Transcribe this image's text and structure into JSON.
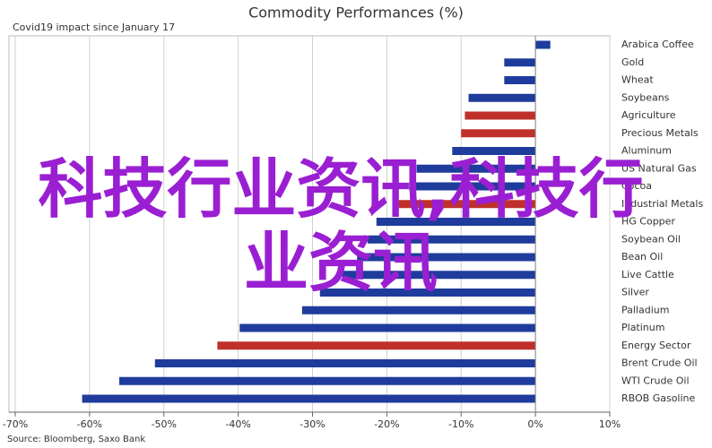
{
  "chart_data": {
    "type": "hbar",
    "title": "Commodity Performances (%)",
    "subtitle": "Covid19 impact since January 17",
    "source": "Source: Bloomberg, Saxo Bank",
    "watermark": "科技行业资讯,科技行业资讯",
    "categories": [
      "Arabica Coffee",
      "Gold",
      "Wheat",
      "Soybeans",
      "Agriculture",
      "Precious Metals",
      "Aluminum",
      "US Natural Gas",
      "Cocoa",
      "Industrial Metals",
      "HG Copper",
      "Soybean Oil",
      "Bean Oil",
      "Live Cattle",
      "Silver",
      "Palladium",
      "Platinum",
      "Energy Sector",
      "Brent Crude Oil",
      "WTI Crude Oil",
      "RBOB Gasoline"
    ],
    "values": [
      2,
      -4.2,
      -4.2,
      -9,
      -9.5,
      -10,
      -11.2,
      -16,
      -17,
      -18.4,
      -21.4,
      -22.6,
      -24,
      -26,
      -29,
      -31.4,
      -39.8,
      -42.8,
      -51.2,
      -56,
      -61
    ],
    "colors": [
      "#1f3c9c",
      "#1f3c9c",
      "#1f3c9c",
      "#1f3c9c",
      "#c0302a",
      "#c0302a",
      "#1f3c9c",
      "#1f3c9c",
      "#1f3c9c",
      "#c0302a",
      "#1f3c9c",
      "#1f3c9c",
      "#1f3c9c",
      "#1f3c9c",
      "#1f3c9c",
      "#1f3c9c",
      "#1f3c9c",
      "#c0302a",
      "#1f3c9c",
      "#1f3c9c",
      "#1f3c9c"
    ],
    "xlim": [
      -70,
      10
    ],
    "xticks": [
      {
        "value": -70,
        "label": "-70%"
      },
      {
        "value": -60,
        "label": "-60%"
      },
      {
        "value": -50,
        "label": "-50%"
      },
      {
        "value": -40,
        "label": "-40%"
      },
      {
        "value": -30,
        "label": "-30%"
      },
      {
        "value": -20,
        "label": "-20%"
      },
      {
        "value": -10,
        "label": "-10%"
      },
      {
        "value": 0,
        "label": "0%"
      },
      {
        "value": 10,
        "label": "10%"
      }
    ],
    "grid": true
  }
}
